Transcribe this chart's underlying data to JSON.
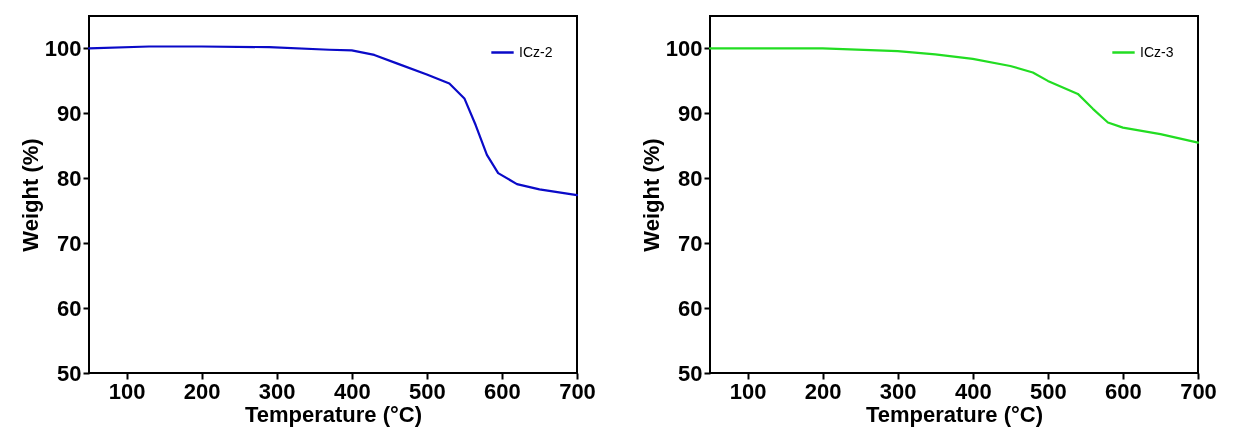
{
  "chart_data": [
    {
      "type": "line",
      "xlabel": "Temperature (°C)",
      "ylabel": "Weight (%)",
      "xlim": [
        50,
        700
      ],
      "ylim": [
        50,
        105
      ],
      "xticks": [
        100,
        200,
        300,
        400,
        500,
        600,
        700
      ],
      "yticks": [
        50,
        60,
        70,
        80,
        90,
        100
      ],
      "grid": false,
      "legend": "top right",
      "series": [
        {
          "name": "ICz-2",
          "color": "#0a0ac8",
          "x": [
            50,
            130,
            200,
            290,
            370,
            400,
            430,
            460,
            500,
            530,
            550,
            565,
            580,
            595,
            620,
            650,
            700
          ],
          "values": [
            100,
            100.3,
            100.3,
            100.2,
            99.8,
            99.7,
            99.0,
            97.7,
            96.0,
            94.6,
            92.3,
            88.2,
            83.6,
            80.8,
            79.1,
            78.3,
            77.4
          ]
        }
      ]
    },
    {
      "type": "line",
      "xlabel": "Temperature (°C)",
      "ylabel": "Weight (%)",
      "xlim": [
        50,
        700
      ],
      "ylim": [
        50,
        105
      ],
      "xticks": [
        100,
        200,
        300,
        400,
        500,
        600,
        700
      ],
      "yticks": [
        50,
        60,
        70,
        80,
        90,
        100
      ],
      "grid": false,
      "legend": "top right",
      "series": [
        {
          "name": "ICz-3",
          "color": "#22dd22",
          "x": [
            50,
            200,
            300,
            350,
            400,
            450,
            480,
            500,
            540,
            560,
            580,
            600,
            650,
            700
          ],
          "values": [
            100,
            100,
            99.6,
            99.1,
            98.4,
            97.3,
            96.3,
            95.0,
            93.0,
            90.7,
            88.6,
            87.8,
            86.8,
            85.5
          ]
        }
      ]
    }
  ]
}
